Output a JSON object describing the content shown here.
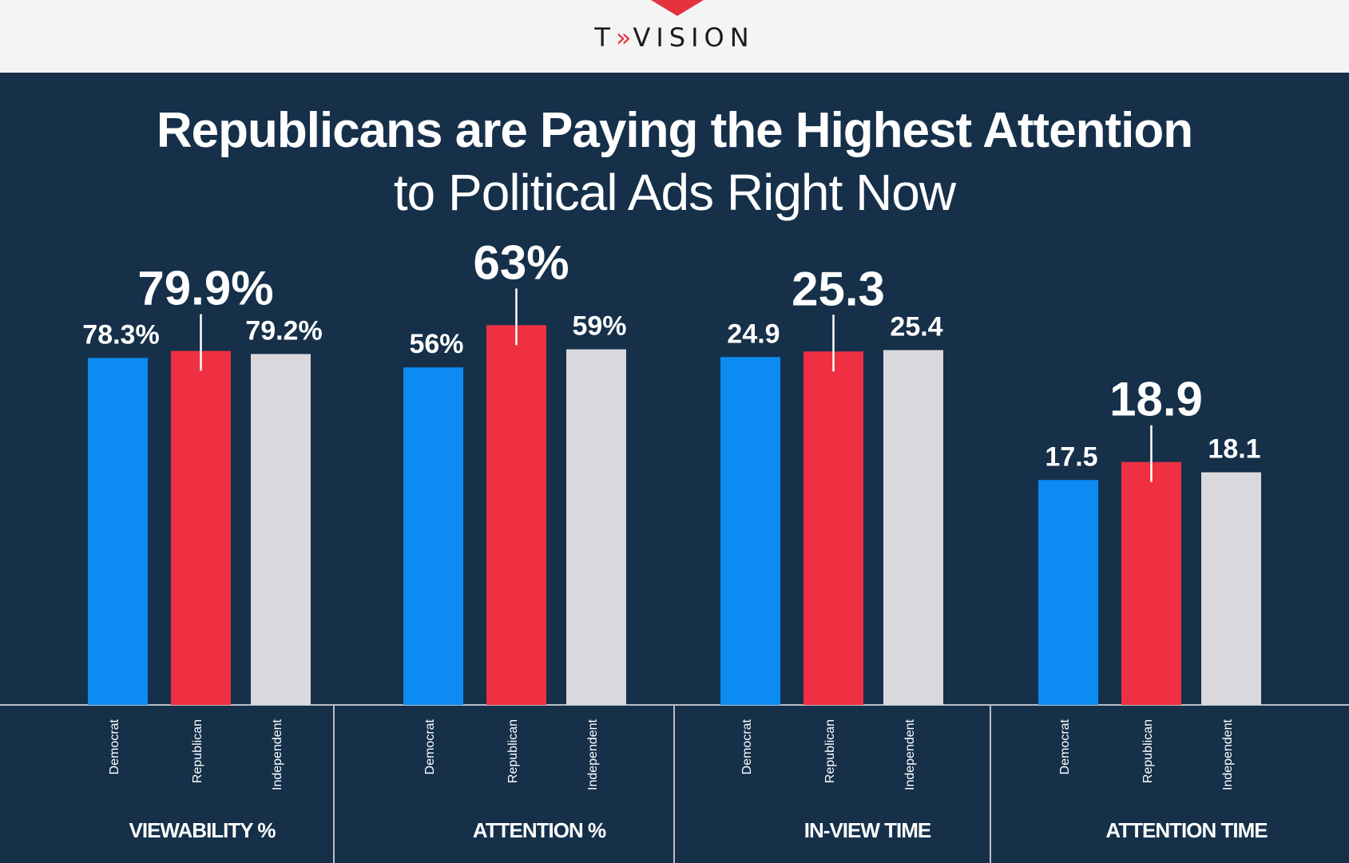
{
  "header": {
    "logo_letter_t": "T",
    "logo_chevrons": "»",
    "logo_rest": "VISION",
    "accent": "#e5323f"
  },
  "title": {
    "main": "Republicans are Paying the Highest Attention",
    "sub": "to Political Ads Right Now"
  },
  "colors": {
    "background": "#16304a",
    "Democrat": "#0c8cf3",
    "Republican": "#ee3042",
    "Independent": "#d9d8dc"
  },
  "chart_data": [
    {
      "type": "bar",
      "title": "VIEWABILITY %",
      "categories": [
        "Democrat",
        "Republican",
        "Independent"
      ],
      "values": [
        78.3,
        79.9,
        79.2
      ],
      "labels": [
        "78.3%",
        "79.9%",
        "79.2%"
      ],
      "highlight_index": 1
    },
    {
      "type": "bar",
      "title": "ATTENTION %",
      "categories": [
        "Democrat",
        "Republican",
        "Independent"
      ],
      "values": [
        56,
        63,
        59
      ],
      "labels": [
        "56%",
        "63%",
        "59%"
      ],
      "highlight_index": 1
    },
    {
      "type": "bar",
      "title": "IN-VIEW TIME",
      "categories": [
        "Democrat",
        "Republican",
        "Independent"
      ],
      "values": [
        24.9,
        25.3,
        25.4
      ],
      "labels": [
        "24.9",
        "25.3",
        "25.4"
      ],
      "highlight_index": 1
    },
    {
      "type": "bar",
      "title": "ATTENTION TIME",
      "categories": [
        "Democrat",
        "Republican",
        "Independent"
      ],
      "values": [
        17.5,
        18.9,
        18.1
      ],
      "labels": [
        "17.5",
        "18.9",
        "18.1"
      ],
      "highlight_index": 1
    }
  ]
}
